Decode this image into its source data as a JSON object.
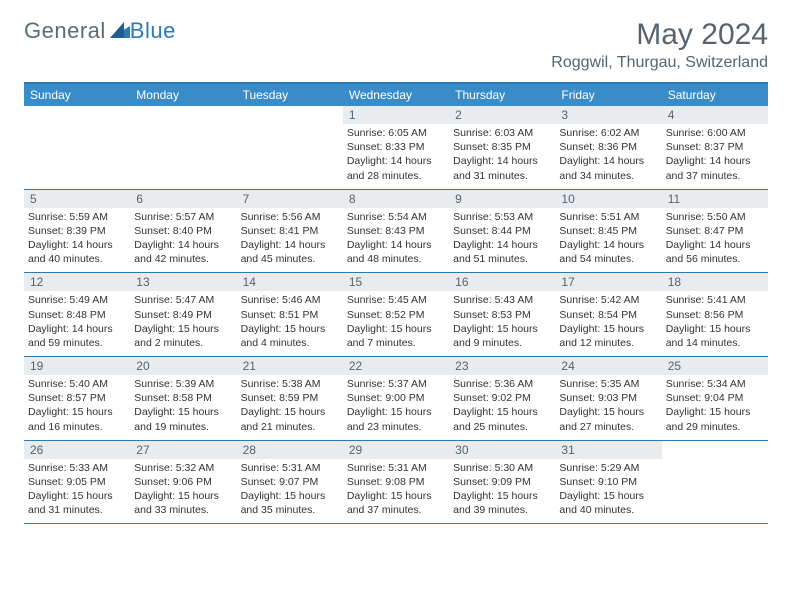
{
  "logo": {
    "text_general": "General",
    "text_blue": "Blue"
  },
  "header": {
    "month_title": "May 2024",
    "location": "Roggwil, Thurgau, Switzerland"
  },
  "colors": {
    "header_bar": "#3a8cc9",
    "accent_rule": "#2a7ab8",
    "num_bar_bg": "#e8ecef",
    "text_muted": "#566470",
    "text_body": "#333333",
    "background": "#ffffff"
  },
  "day_names": [
    "Sunday",
    "Monday",
    "Tuesday",
    "Wednesday",
    "Thursday",
    "Friday",
    "Saturday"
  ],
  "weeks": [
    [
      {
        "day": "",
        "sunrise": "",
        "sunset": "",
        "daylight": ""
      },
      {
        "day": "",
        "sunrise": "",
        "sunset": "",
        "daylight": ""
      },
      {
        "day": "",
        "sunrise": "",
        "sunset": "",
        "daylight": ""
      },
      {
        "day": "1",
        "sunrise": "Sunrise: 6:05 AM",
        "sunset": "Sunset: 8:33 PM",
        "daylight": "Daylight: 14 hours and 28 minutes."
      },
      {
        "day": "2",
        "sunrise": "Sunrise: 6:03 AM",
        "sunset": "Sunset: 8:35 PM",
        "daylight": "Daylight: 14 hours and 31 minutes."
      },
      {
        "day": "3",
        "sunrise": "Sunrise: 6:02 AM",
        "sunset": "Sunset: 8:36 PM",
        "daylight": "Daylight: 14 hours and 34 minutes."
      },
      {
        "day": "4",
        "sunrise": "Sunrise: 6:00 AM",
        "sunset": "Sunset: 8:37 PM",
        "daylight": "Daylight: 14 hours and 37 minutes."
      }
    ],
    [
      {
        "day": "5",
        "sunrise": "Sunrise: 5:59 AM",
        "sunset": "Sunset: 8:39 PM",
        "daylight": "Daylight: 14 hours and 40 minutes."
      },
      {
        "day": "6",
        "sunrise": "Sunrise: 5:57 AM",
        "sunset": "Sunset: 8:40 PM",
        "daylight": "Daylight: 14 hours and 42 minutes."
      },
      {
        "day": "7",
        "sunrise": "Sunrise: 5:56 AM",
        "sunset": "Sunset: 8:41 PM",
        "daylight": "Daylight: 14 hours and 45 minutes."
      },
      {
        "day": "8",
        "sunrise": "Sunrise: 5:54 AM",
        "sunset": "Sunset: 8:43 PM",
        "daylight": "Daylight: 14 hours and 48 minutes."
      },
      {
        "day": "9",
        "sunrise": "Sunrise: 5:53 AM",
        "sunset": "Sunset: 8:44 PM",
        "daylight": "Daylight: 14 hours and 51 minutes."
      },
      {
        "day": "10",
        "sunrise": "Sunrise: 5:51 AM",
        "sunset": "Sunset: 8:45 PM",
        "daylight": "Daylight: 14 hours and 54 minutes."
      },
      {
        "day": "11",
        "sunrise": "Sunrise: 5:50 AM",
        "sunset": "Sunset: 8:47 PM",
        "daylight": "Daylight: 14 hours and 56 minutes."
      }
    ],
    [
      {
        "day": "12",
        "sunrise": "Sunrise: 5:49 AM",
        "sunset": "Sunset: 8:48 PM",
        "daylight": "Daylight: 14 hours and 59 minutes."
      },
      {
        "day": "13",
        "sunrise": "Sunrise: 5:47 AM",
        "sunset": "Sunset: 8:49 PM",
        "daylight": "Daylight: 15 hours and 2 minutes."
      },
      {
        "day": "14",
        "sunrise": "Sunrise: 5:46 AM",
        "sunset": "Sunset: 8:51 PM",
        "daylight": "Daylight: 15 hours and 4 minutes."
      },
      {
        "day": "15",
        "sunrise": "Sunrise: 5:45 AM",
        "sunset": "Sunset: 8:52 PM",
        "daylight": "Daylight: 15 hours and 7 minutes."
      },
      {
        "day": "16",
        "sunrise": "Sunrise: 5:43 AM",
        "sunset": "Sunset: 8:53 PM",
        "daylight": "Daylight: 15 hours and 9 minutes."
      },
      {
        "day": "17",
        "sunrise": "Sunrise: 5:42 AM",
        "sunset": "Sunset: 8:54 PM",
        "daylight": "Daylight: 15 hours and 12 minutes."
      },
      {
        "day": "18",
        "sunrise": "Sunrise: 5:41 AM",
        "sunset": "Sunset: 8:56 PM",
        "daylight": "Daylight: 15 hours and 14 minutes."
      }
    ],
    [
      {
        "day": "19",
        "sunrise": "Sunrise: 5:40 AM",
        "sunset": "Sunset: 8:57 PM",
        "daylight": "Daylight: 15 hours and 16 minutes."
      },
      {
        "day": "20",
        "sunrise": "Sunrise: 5:39 AM",
        "sunset": "Sunset: 8:58 PM",
        "daylight": "Daylight: 15 hours and 19 minutes."
      },
      {
        "day": "21",
        "sunrise": "Sunrise: 5:38 AM",
        "sunset": "Sunset: 8:59 PM",
        "daylight": "Daylight: 15 hours and 21 minutes."
      },
      {
        "day": "22",
        "sunrise": "Sunrise: 5:37 AM",
        "sunset": "Sunset: 9:00 PM",
        "daylight": "Daylight: 15 hours and 23 minutes."
      },
      {
        "day": "23",
        "sunrise": "Sunrise: 5:36 AM",
        "sunset": "Sunset: 9:02 PM",
        "daylight": "Daylight: 15 hours and 25 minutes."
      },
      {
        "day": "24",
        "sunrise": "Sunrise: 5:35 AM",
        "sunset": "Sunset: 9:03 PM",
        "daylight": "Daylight: 15 hours and 27 minutes."
      },
      {
        "day": "25",
        "sunrise": "Sunrise: 5:34 AM",
        "sunset": "Sunset: 9:04 PM",
        "daylight": "Daylight: 15 hours and 29 minutes."
      }
    ],
    [
      {
        "day": "26",
        "sunrise": "Sunrise: 5:33 AM",
        "sunset": "Sunset: 9:05 PM",
        "daylight": "Daylight: 15 hours and 31 minutes."
      },
      {
        "day": "27",
        "sunrise": "Sunrise: 5:32 AM",
        "sunset": "Sunset: 9:06 PM",
        "daylight": "Daylight: 15 hours and 33 minutes."
      },
      {
        "day": "28",
        "sunrise": "Sunrise: 5:31 AM",
        "sunset": "Sunset: 9:07 PM",
        "daylight": "Daylight: 15 hours and 35 minutes."
      },
      {
        "day": "29",
        "sunrise": "Sunrise: 5:31 AM",
        "sunset": "Sunset: 9:08 PM",
        "daylight": "Daylight: 15 hours and 37 minutes."
      },
      {
        "day": "30",
        "sunrise": "Sunrise: 5:30 AM",
        "sunset": "Sunset: 9:09 PM",
        "daylight": "Daylight: 15 hours and 39 minutes."
      },
      {
        "day": "31",
        "sunrise": "Sunrise: 5:29 AM",
        "sunset": "Sunset: 9:10 PM",
        "daylight": "Daylight: 15 hours and 40 minutes."
      },
      {
        "day": "",
        "sunrise": "",
        "sunset": "",
        "daylight": ""
      }
    ]
  ]
}
